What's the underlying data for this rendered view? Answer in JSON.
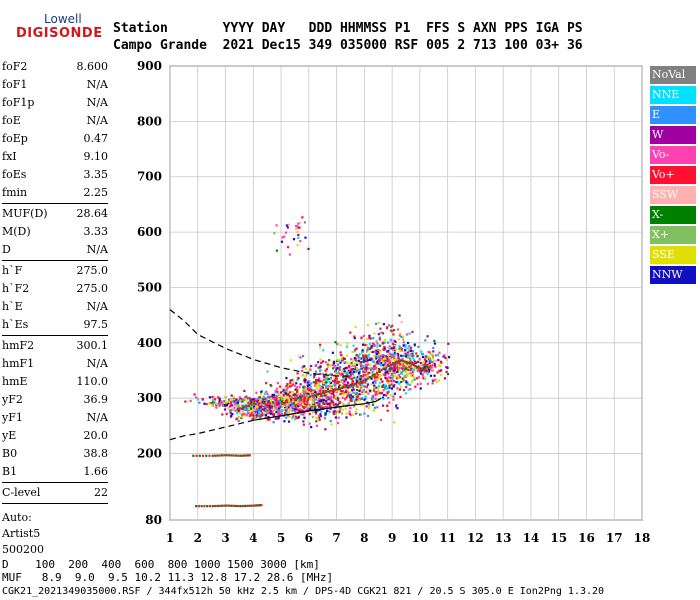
{
  "logo": {
    "top": "Lowell",
    "bottom": "DIGISONDE",
    "top_color": "#1a3a8a",
    "bottom_color": "#d01820"
  },
  "header": {
    "line1": "Station       YYYY DAY   DDD HHMMSS P1  FFS S AXN PPS IGA PS",
    "line2": "Campo Grande  2021 Dec15 349 035000 RSF 005 2 713 100 03+ 36"
  },
  "params": [
    [
      {
        "k": "foF2",
        "v": "8.600"
      },
      {
        "k": "foF1",
        "v": "N/A"
      },
      {
        "k": "foF1p",
        "v": "N/A"
      },
      {
        "k": "foE",
        "v": "N/A"
      },
      {
        "k": "foEp",
        "v": "0.47"
      },
      {
        "k": "fxI",
        "v": "9.10"
      },
      {
        "k": "foEs",
        "v": "3.35"
      },
      {
        "k": "fmin",
        "v": "2.25"
      }
    ],
    [
      {
        "k": "MUF(D)",
        "v": "28.64"
      },
      {
        "k": "M(D)",
        "v": "3.33"
      },
      {
        "k": "D",
        "v": "N/A"
      }
    ],
    [
      {
        "k": "h`F",
        "v": "275.0"
      },
      {
        "k": "h`F2",
        "v": "275.0"
      },
      {
        "k": "h`E",
        "v": "N/A"
      },
      {
        "k": "h`Es",
        "v": "97.5"
      }
    ],
    [
      {
        "k": "hmF2",
        "v": "300.1"
      },
      {
        "k": "hmF1",
        "v": "N/A"
      },
      {
        "k": "hmE",
        "v": "110.0"
      },
      {
        "k": "yF2",
        "v": "36.9"
      },
      {
        "k": "yF1",
        "v": "N/A"
      },
      {
        "k": "yE",
        "v": "20.0"
      },
      {
        "k": "B0",
        "v": "38.8"
      },
      {
        "k": "B1",
        "v": "1.66"
      }
    ],
    [
      {
        "k": "C-level",
        "v": "22"
      }
    ]
  ],
  "auto": {
    "line1": "Auto:",
    "line2": "Artist5",
    "line3": "500200"
  },
  "legend": [
    {
      "label": "NoVal",
      "color": "#808080"
    },
    {
      "label": "NNE",
      "color": "#00e0ff"
    },
    {
      "label": "E",
      "color": "#3090ff"
    },
    {
      "label": "W",
      "color": "#a000a0"
    },
    {
      "label": "Vo-",
      "color": "#ff40b0"
    },
    {
      "label": "Vo+",
      "color": "#ff1030"
    },
    {
      "label": "SSW",
      "color": "#ffb0b0"
    },
    {
      "label": "X-",
      "color": "#008000"
    },
    {
      "label": "X+",
      "color": "#80c060"
    },
    {
      "label": "SSE",
      "color": "#e0e000"
    },
    {
      "label": "NNW",
      "color": "#1010c0"
    }
  ],
  "footer": {
    "line1": "D    100  200  400  600  800 1000 1500 3000 [km]",
    "line2": "MUF   8.9  9.0  9.5 10.2 11.3 12.8 17.2 28.6 [MHz]",
    "line3": "CGK21_2021349035000.RSF / 344fx512h 50 kHz 2.5 km / DPS-4D CGK21 821 / 20.5 S 305.0 E Ion2Png 1.3.20"
  },
  "chart_data": {
    "type": "scatter",
    "title": "",
    "xlabel": "",
    "ylabel": "",
    "xlim": [
      1,
      18
    ],
    "ylim": [
      80,
      900
    ],
    "x_ticks": [
      1,
      2,
      3,
      4,
      5,
      6,
      7,
      8,
      9,
      10,
      11,
      12,
      13,
      14,
      15,
      16,
      17,
      18
    ],
    "y_ticks": [
      80,
      200,
      300,
      400,
      500,
      600,
      700,
      800,
      900
    ],
    "grid": true,
    "series": [
      {
        "name": "F-layer trace",
        "x": [
          3.4,
          4,
          5,
          6,
          6.5,
          7,
          7.5,
          8,
          8.5,
          9,
          9.3,
          9.6,
          10,
          10.3
        ],
        "y": [
          282,
          292,
          296,
          305,
          312,
          318,
          325,
          335,
          350,
          365,
          370,
          365,
          355,
          350
        ]
      },
      {
        "name": "Es trace",
        "x": [
          1.8,
          2.5,
          3,
          3.5,
          3.9
        ],
        "y": [
          198,
          198,
          199,
          198,
          199
        ]
      },
      {
        "name": "E trace",
        "x": [
          1.9,
          2.5,
          3,
          3.5,
          4,
          4.3
        ],
        "y": [
          107,
          107,
          108,
          107,
          108,
          109
        ]
      }
    ],
    "profile_curve": {
      "x": [
        4,
        5,
        6,
        7,
        7.5,
        8,
        8.4,
        8.6
      ],
      "y": [
        260,
        268,
        277,
        284,
        287,
        290,
        294,
        300
      ]
    },
    "profile_dashed_upper": {
      "x": [
        1,
        1.5,
        2,
        3,
        4,
        5,
        6,
        7,
        7.5
      ],
      "y": [
        460,
        440,
        415,
        390,
        370,
        355,
        345,
        340,
        340
      ]
    },
    "profile_dashed_lower": {
      "x": [
        1,
        1.5,
        2,
        2.5,
        3,
        3.5,
        4
      ],
      "y": [
        225,
        232,
        236,
        242,
        248,
        254,
        260
      ]
    },
    "scatter_groups": [
      {
        "cx": 4,
        "cy": 283,
        "sx": 0.5,
        "sy": 10,
        "n": 260
      },
      {
        "cx": 5,
        "cy": 292,
        "sx": 0.6,
        "sy": 14,
        "n": 340
      },
      {
        "cx": 6,
        "cy": 305,
        "sx": 0.6,
        "sy": 20,
        "n": 360
      },
      {
        "cx": 7,
        "cy": 325,
        "sx": 0.6,
        "sy": 28,
        "n": 380
      },
      {
        "cx": 8,
        "cy": 345,
        "sx": 0.6,
        "sy": 32,
        "n": 380
      },
      {
        "cx": 8.8,
        "cy": 370,
        "sx": 0.4,
        "sy": 30,
        "n": 300
      },
      {
        "cx": 9.6,
        "cy": 365,
        "sx": 0.4,
        "sy": 20,
        "n": 200
      },
      {
        "cx": 10.4,
        "cy": 360,
        "sx": 0.3,
        "sy": 14,
        "n": 90
      },
      {
        "cx": 3,
        "cy": 293,
        "sx": 0.4,
        "sy": 3,
        "n": 60
      },
      {
        "cx": 5.5,
        "cy": 600,
        "sx": 0.3,
        "sy": 15,
        "n": 30
      },
      {
        "cx": 3.5,
        "cy": 300,
        "sx": 0.9,
        "sy": 4,
        "n": 60
      }
    ]
  }
}
